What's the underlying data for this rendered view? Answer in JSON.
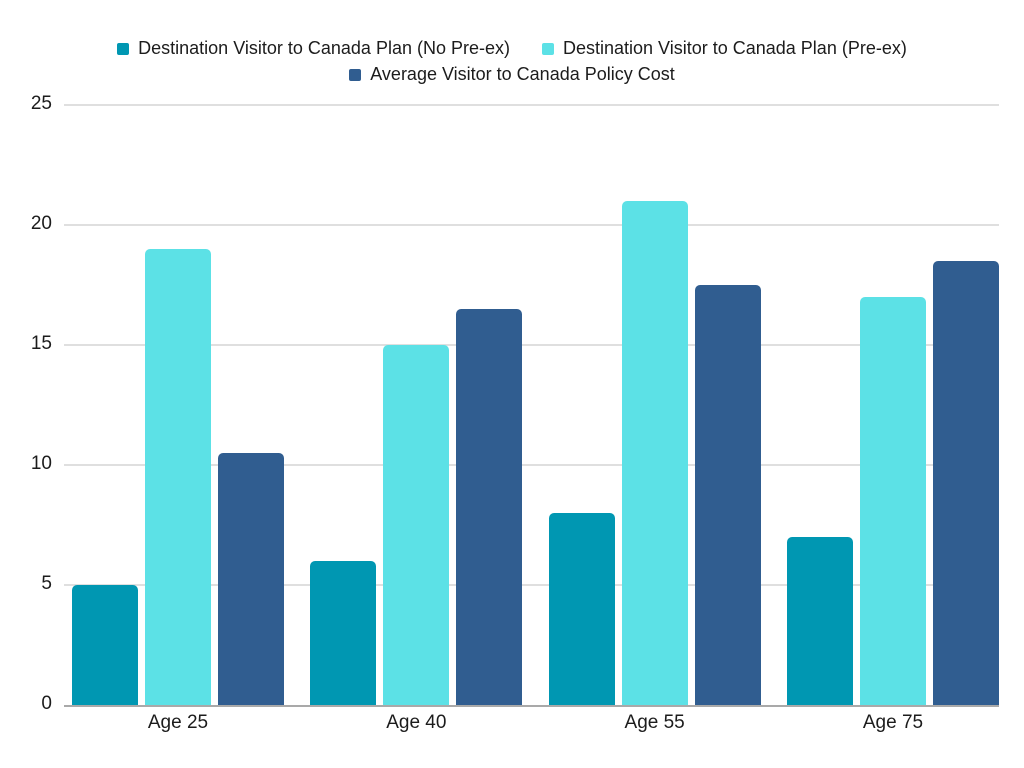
{
  "chart_data": {
    "type": "bar",
    "title": "",
    "categories": [
      "Age 25",
      "Age 40",
      "Age 55",
      "Age 75"
    ],
    "series": [
      {
        "name": "Destination Visitor to Canada Plan (No Pre-ex)",
        "color": "#0097b2",
        "values": [
          5,
          6,
          8,
          7
        ]
      },
      {
        "name": "Destination Visitor to Canada Plan (Pre-ex)",
        "color": "#5ce1e6",
        "values": [
          19,
          15,
          21,
          17
        ]
      },
      {
        "name": "Average Visitor to Canada Policy Cost",
        "color": "#305d90",
        "values": [
          10.5,
          16.5,
          17.5,
          18.5
        ]
      }
    ],
    "xlabel": "",
    "ylabel": "",
    "ylim": [
      0,
      25
    ],
    "yticks": [
      0,
      5,
      10,
      15,
      20,
      25
    ],
    "grid": true,
    "legend_position": "top-center-two-rows",
    "legend_rows": [
      [
        0,
        1
      ],
      [
        2
      ]
    ]
  },
  "styles": {
    "background": "#ffffff",
    "gridline_color": "#dfdfdf",
    "axis_line_color": "#a9a9a9",
    "text_color": "#1c1c1c"
  }
}
